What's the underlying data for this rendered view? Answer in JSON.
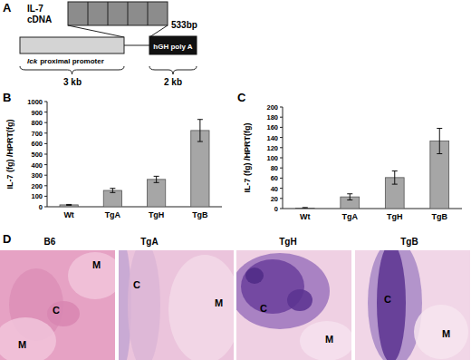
{
  "figure": {
    "panel_a": {
      "label": "A",
      "insert_lines": [
        "IL-7",
        "cDNA"
      ],
      "insert_size": "533bp",
      "promoter_prefix": "lck",
      "promoter_rest": "proximal promoter",
      "promoter_size": "3 kb",
      "polya": "hGH poly A",
      "polya_size": "2 kb"
    },
    "panel_d": {
      "label": "D",
      "images": [
        {
          "title": "B6",
          "marks": [
            "M",
            "C",
            "M"
          ]
        },
        {
          "title": "TgA",
          "marks": [
            "C",
            "M"
          ]
        },
        {
          "title": "TgH",
          "marks": [
            "C",
            "M"
          ]
        },
        {
          "title": "TgB",
          "marks": [
            "C",
            "M"
          ]
        }
      ]
    }
  },
  "chart_data": [
    {
      "type": "bar",
      "title": "B",
      "y_label": "IL-7 (fg) /HPRT(fg)",
      "categories": [
        "Wt",
        "TgA",
        "TgH",
        "TgB"
      ],
      "values": [
        18,
        155,
        260,
        725
      ],
      "errors": [
        4,
        20,
        30,
        105
      ],
      "color": "#a6a6a6",
      "ylim": [
        0,
        1000
      ],
      "yticks": [
        0,
        100,
        200,
        300,
        400,
        500,
        600,
        700,
        800,
        900,
        1000
      ],
      "grid": false
    },
    {
      "type": "bar",
      "title": "C",
      "y_label": "IL-7 (fg) /HPRT(fg)",
      "categories": [
        "Wt",
        "TgA",
        "TgH",
        "TgB"
      ],
      "values": [
        1,
        23,
        61,
        133
      ],
      "errors": [
        1,
        6,
        13,
        25
      ],
      "color": "#a6a6a6",
      "ylim": [
        0,
        200
      ],
      "yticks": [
        0,
        20,
        40,
        60,
        80,
        100,
        120,
        140,
        160,
        180,
        200
      ],
      "grid": false
    }
  ]
}
